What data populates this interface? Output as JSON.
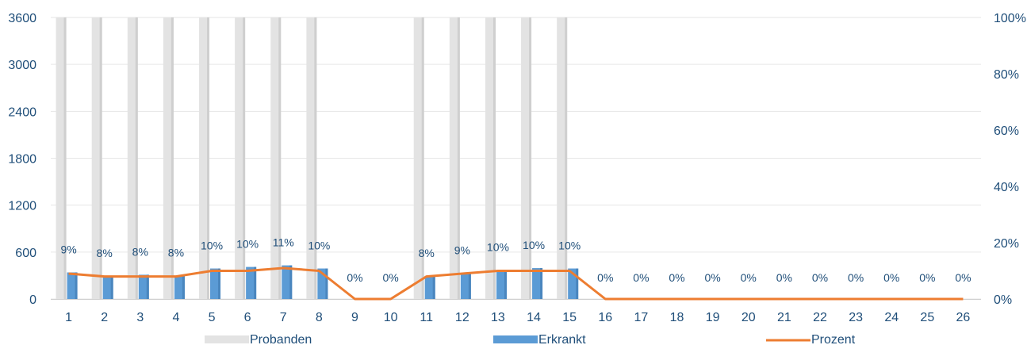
{
  "chart_data": {
    "type": "bar",
    "categories": [
      "1",
      "2",
      "3",
      "4",
      "5",
      "6",
      "7",
      "8",
      "9",
      "10",
      "11",
      "12",
      "13",
      "14",
      "15",
      "16",
      "17",
      "18",
      "19",
      "20",
      "21",
      "22",
      "23",
      "24",
      "25",
      "26"
    ],
    "series": [
      {
        "name": "Probanden",
        "type": "bar",
        "axis": "left",
        "color": "#e3e3e3",
        "values": [
          3600,
          3600,
          3600,
          3600,
          3600,
          3600,
          3600,
          3600,
          0,
          0,
          3600,
          3600,
          3600,
          3600,
          3600,
          0,
          0,
          0,
          0,
          0,
          0,
          0,
          0,
          0,
          0,
          0
        ]
      },
      {
        "name": "Erkrankt",
        "type": "bar",
        "axis": "left",
        "color": "#5b9bd5",
        "values": [
          340,
          295,
          310,
          300,
          390,
          410,
          430,
          390,
          0,
          0,
          295,
          330,
          370,
          395,
          390,
          0,
          0,
          0,
          0,
          0,
          0,
          0,
          0,
          0,
          0,
          0
        ]
      },
      {
        "name": "Prozent",
        "type": "line",
        "axis": "right",
        "color": "#ed7d31",
        "values": [
          9,
          8,
          8,
          8,
          10,
          10,
          11,
          10,
          0,
          0,
          8,
          9,
          10,
          10,
          10,
          0,
          0,
          0,
          0,
          0,
          0,
          0,
          0,
          0,
          0,
          0
        ],
        "labels": [
          "9%",
          "8%",
          "8%",
          "8%",
          "10%",
          "10%",
          "11%",
          "10%",
          "0%",
          "0%",
          "8%",
          "9%",
          "10%",
          "10%",
          "10%",
          "0%",
          "0%",
          "0%",
          "0%",
          "0%",
          "0%",
          "0%",
          "0%",
          "0%",
          "0%",
          "0%"
        ]
      }
    ],
    "y_left": {
      "ylim": [
        0,
        3600
      ],
      "ticks": [
        "0",
        "600",
        "1200",
        "1800",
        "2400",
        "3000",
        "3600"
      ]
    },
    "y_right": {
      "ylim": [
        0,
        100
      ],
      "ticks": [
        "0%",
        "20%",
        "40%",
        "60%",
        "80%",
        "100%"
      ]
    },
    "grid": true,
    "legend_position": "bottom"
  }
}
